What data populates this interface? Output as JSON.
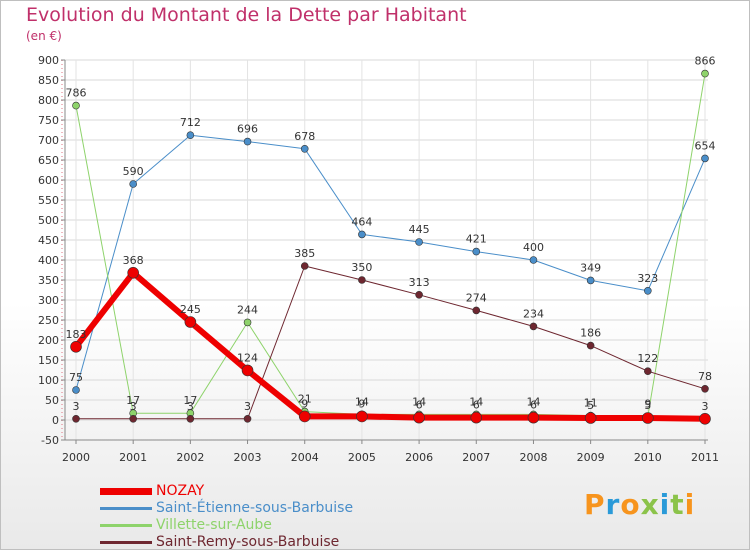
{
  "header": {
    "title": "Evolution du Montant de la Dette par Habitant",
    "subtitle": "(en €)"
  },
  "brand": {
    "text": "Proxiti",
    "colors": [
      "#f7941d",
      "#2a9ad8",
      "#f7941d",
      "#8bc34a",
      "#2a9ad8",
      "#8bc34a",
      "#f7941d"
    ]
  },
  "chart_data": {
    "type": "line",
    "title": "Evolution du Montant de la Dette par Habitant",
    "subtitle": "(en €)",
    "xlabel": "",
    "ylabel": "",
    "x": [
      "2000",
      "2001",
      "2002",
      "2003",
      "2004",
      "2005",
      "2006",
      "2007",
      "2008",
      "2009",
      "2010",
      "2011"
    ],
    "ylim": [
      -50,
      900
    ],
    "yticks": [
      -50,
      0,
      50,
      100,
      150,
      200,
      250,
      300,
      350,
      400,
      450,
      500,
      550,
      600,
      650,
      700,
      750,
      800,
      850,
      900
    ],
    "grid": true,
    "legend_position": "bottom-left",
    "series": [
      {
        "name": "Saint-Étienne-sous-Barbuise",
        "color": "#4a8ec9",
        "width": 1,
        "values": [
          75,
          590,
          712,
          696,
          678,
          464,
          445,
          421,
          400,
          349,
          323,
          654
        ],
        "labels": [
          "75",
          "590",
          "712",
          "696",
          "678",
          "464",
          "445",
          "421",
          "400",
          "349",
          "323",
          "654"
        ]
      },
      {
        "name": "Villette-sur-Aube",
        "color": "#8ed36b",
        "width": 1,
        "values": [
          786,
          17,
          17,
          244,
          21,
          14,
          14,
          14,
          14,
          11,
          9,
          866
        ],
        "labels": [
          "786",
          "17",
          "17",
          "244",
          "21",
          "14",
          "14",
          "14",
          "14",
          "11",
          "9",
          "866"
        ]
      },
      {
        "name": "Saint-Remy-sous-Barbuise",
        "color": "#6e2730",
        "width": 1,
        "values": [
          3,
          3,
          3,
          3,
          385,
          350,
          313,
          274,
          234,
          186,
          122,
          78
        ],
        "labels": [
          "3",
          "3",
          "3",
          "3",
          "385",
          "350",
          "313",
          "274",
          "234",
          "186",
          "122",
          "78"
        ]
      },
      {
        "name": "NOZAY",
        "color": "#ee0000",
        "width": 6,
        "values": [
          183,
          368,
          245,
          124,
          9,
          9,
          6,
          6,
          6,
          5,
          5,
          3
        ],
        "labels": [
          "183",
          "368",
          "245",
          "124",
          "9",
          "9",
          "6",
          "6",
          "6",
          "5",
          "5",
          "3"
        ]
      }
    ],
    "legend_order": [
      "NOZAY",
      "Saint-Étienne-sous-Barbuise",
      "Villette-sur-Aube",
      "Saint-Remy-sous-Barbuise"
    ]
  }
}
